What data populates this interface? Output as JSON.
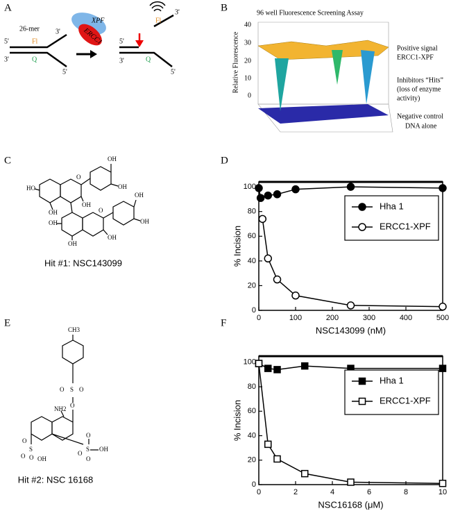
{
  "panel_labels": [
    "A",
    "B",
    "C",
    "D",
    "E",
    "F"
  ],
  "panel_a": {
    "oligo": "26-mer",
    "fl": "Fl",
    "q": "Q",
    "ends_left": [
      "5'",
      "3'",
      "3'",
      "5'"
    ],
    "xpf": "XPF",
    "ercc1": "ERCC1",
    "ends_right": [
      "3'",
      "5'",
      "3'",
      "5'"
    ],
    "fl_product": "Fl",
    "q_product": "Q"
  },
  "panel_b": {
    "title": "96 well Fluorescence Screening Assay",
    "ylabel": "Relative Fluorescence",
    "yticks": [
      "40",
      "30",
      "20",
      "10",
      "0"
    ],
    "annotations": [
      "Positive signal",
      "ERCC1-XPF",
      "Inhibitors “Hits”",
      "(loss of enzyme",
      "activity)",
      "Negative control",
      "DNA alone"
    ]
  },
  "panel_c": {
    "atoms": [
      "HO",
      "O",
      "OH",
      "OH",
      "OH",
      "OH",
      "OH",
      "O",
      "OH",
      "OH",
      "OH",
      "OH"
    ],
    "caption": "Hit #1: NSC143099"
  },
  "panel_e": {
    "atoms": [
      "CH3",
      "O",
      "S",
      "O",
      "O",
      "NH2",
      "O",
      "S",
      "O",
      "O",
      "OH",
      "O",
      "S",
      "O",
      "OH",
      "O"
    ],
    "caption": "Hit #2: NSC 16168"
  },
  "chart_data": [
    {
      "type": "line",
      "xlabel": "NSC143099 (nM)",
      "ylabel": "% Incision",
      "xlim": [
        0,
        500
      ],
      "xticks": [
        0,
        100,
        200,
        300,
        400,
        500
      ],
      "ylim": [
        0,
        104
      ],
      "yticks": [
        0,
        20,
        40,
        60,
        80,
        100
      ],
      "legend": "upper right",
      "series": [
        {
          "name": "Hha 1",
          "color": "#000000",
          "marker": "circle",
          "filled": true,
          "x": [
            0,
            5,
            25,
            50,
            100,
            250,
            500
          ],
          "values": [
            99,
            91,
            93,
            94,
            98,
            100,
            99
          ]
        },
        {
          "name": "ERCC1-XPF",
          "color": "#000000",
          "marker": "circle",
          "filled": false,
          "x": [
            10,
            25,
            50,
            100,
            250,
            500
          ],
          "values": [
            74,
            42,
            25,
            12,
            4,
            3
          ]
        }
      ]
    },
    {
      "type": "line",
      "xlabel": "NSC16168 (μM)",
      "ylabel": "% Incision",
      "xlim": [
        0,
        10
      ],
      "xticks": [
        0,
        2,
        4,
        6,
        8,
        10
      ],
      "ylim": [
        0,
        105
      ],
      "yticks": [
        0,
        20,
        40,
        60,
        80,
        100
      ],
      "legend": "upper right",
      "series": [
        {
          "name": "Hha 1",
          "color": "#000000",
          "marker": "square",
          "filled": true,
          "x": [
            0,
            0.5,
            1,
            2.5,
            5,
            10
          ],
          "values": [
            99,
            95,
            94,
            97,
            95,
            95
          ]
        },
        {
          "name": "ERCC1-XPF",
          "color": "#000000",
          "marker": "square",
          "filled": false,
          "x": [
            0,
            0.5,
            1,
            2.5,
            5,
            10
          ],
          "values": [
            99,
            33,
            21,
            9,
            2,
            1
          ]
        }
      ]
    }
  ]
}
